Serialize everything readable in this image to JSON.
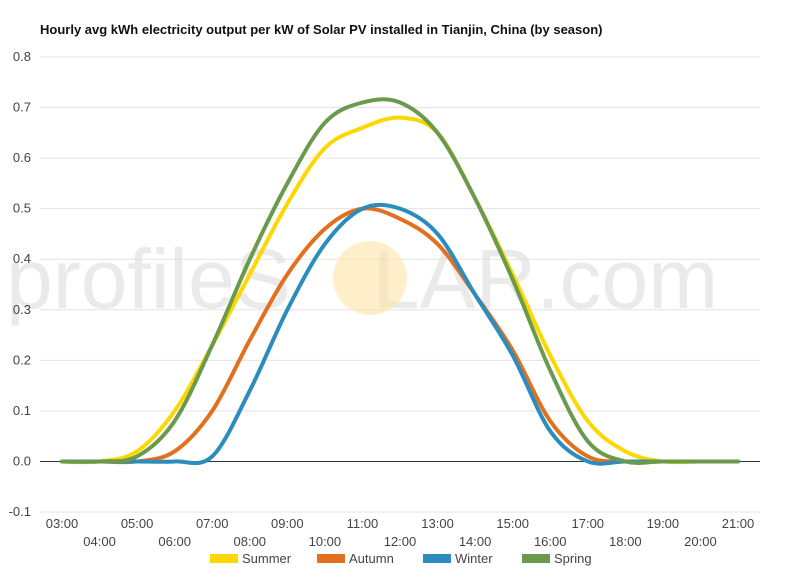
{
  "chart_data": {
    "type": "line",
    "title": "Hourly avg kWh electricity output per kW of Solar PV installed in Tianjin, China (by season)",
    "xlabel": "",
    "ylabel": "",
    "x": [
      "03:00",
      "04:00",
      "05:00",
      "06:00",
      "07:00",
      "08:00",
      "09:00",
      "10:00",
      "11:00",
      "12:00",
      "13:00",
      "14:00",
      "15:00",
      "16:00",
      "17:00",
      "18:00",
      "19:00",
      "20:00",
      "21:00"
    ],
    "ylim": [
      -0.1,
      0.8
    ],
    "yticks": [
      "0.8",
      "0.7",
      "0.6",
      "0.5",
      "0.4",
      "0.3",
      "0.2",
      "0.1",
      "0.0",
      "-0.1"
    ],
    "grid": true,
    "legend_position": "bottom",
    "series": [
      {
        "name": "Summer",
        "color": "#FFD700",
        "values": [
          0.0,
          0.0,
          0.02,
          0.1,
          0.23,
          0.37,
          0.51,
          0.62,
          0.66,
          0.68,
          0.65,
          0.52,
          0.37,
          0.21,
          0.08,
          0.02,
          0.0,
          0.0,
          0.0
        ]
      },
      {
        "name": "Autumn",
        "color": "#E2701F",
        "values": [
          0.0,
          0.0,
          0.0,
          0.02,
          0.1,
          0.24,
          0.37,
          0.46,
          0.5,
          0.48,
          0.43,
          0.33,
          0.22,
          0.08,
          0.01,
          0.0,
          0.0,
          0.0,
          0.0
        ]
      },
      {
        "name": "Winter",
        "color": "#2A8DBE",
        "values": [
          0.0,
          0.0,
          0.0,
          0.0,
          0.01,
          0.14,
          0.3,
          0.43,
          0.5,
          0.5,
          0.45,
          0.33,
          0.21,
          0.06,
          0.0,
          0.0,
          0.0,
          0.0,
          0.0
        ]
      },
      {
        "name": "Spring",
        "color": "#6A9A4C",
        "values": [
          0.0,
          0.0,
          0.01,
          0.08,
          0.23,
          0.4,
          0.55,
          0.67,
          0.71,
          0.71,
          0.65,
          0.52,
          0.36,
          0.18,
          0.04,
          0.0,
          0.0,
          0.0,
          0.0
        ]
      }
    ]
  },
  "watermark": {
    "prefix": "profileS",
    "suffix": "LAR.com"
  }
}
